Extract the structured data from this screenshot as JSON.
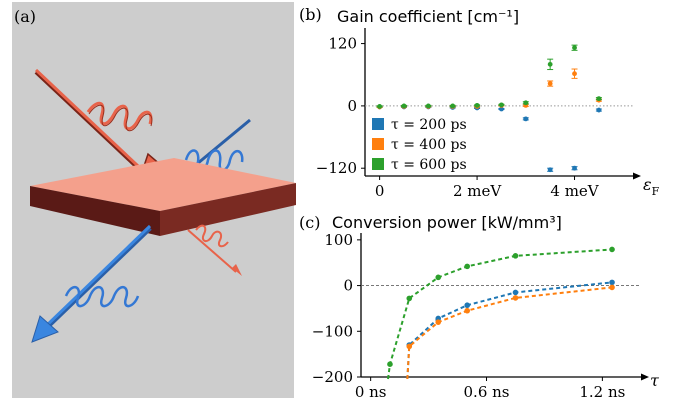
{
  "panel_a": {
    "label": "(a)",
    "background": "#cdcdcd",
    "slab_top": "#f4a08c",
    "slab_side": "#5a1a16",
    "red": "#e8634a",
    "blue": "#3478d4"
  },
  "chart_data": [
    {
      "type": "scatter",
      "panel_label": "(b)",
      "title": "Gain coefficient [cm⁻¹]",
      "xlabel": "ε",
      "xlabel_sub": "F",
      "ylabel": "",
      "xlim": [
        -0.3,
        5.2
      ],
      "ylim": [
        -135,
        150
      ],
      "xticks": [
        0,
        2,
        4
      ],
      "xtick_labels": [
        "0",
        "2 meV",
        "4 meV"
      ],
      "yticks": [
        -120,
        0,
        120
      ],
      "ytick_labels": [
        "−120",
        "0",
        "120"
      ],
      "zero_line": "dotted",
      "legend_placement": "bottom-left",
      "colors": [
        "#1f77b4",
        "#ff7f0e",
        "#2ca02c"
      ],
      "series": [
        {
          "name": "τ = 200 ps",
          "x": [
            0,
            0.5,
            1,
            1.5,
            2,
            2.5,
            3,
            3.5,
            4,
            4.5
          ],
          "y": [
            -2,
            -2,
            -2,
            -3,
            -4,
            -6,
            -25,
            -123,
            -120,
            -8
          ],
          "err": [
            1,
            1,
            1,
            1,
            1,
            1,
            2,
            3,
            3,
            2
          ]
        },
        {
          "name": "τ = 400 ps",
          "x": [
            0,
            0.5,
            1,
            1.5,
            2,
            2.5,
            3,
            3.5,
            4,
            4.5
          ],
          "y": [
            -2,
            -1,
            -1,
            -1,
            -1,
            1,
            1,
            43,
            62,
            11
          ],
          "err": [
            1,
            1,
            1,
            1,
            1,
            1,
            2,
            5,
            9,
            2
          ]
        },
        {
          "name": "τ = 600 ps",
          "x": [
            0,
            0.5,
            1,
            1.5,
            2,
            2.5,
            3,
            3.5,
            4,
            4.5
          ],
          "y": [
            -1,
            0,
            0,
            0,
            1,
            2,
            6,
            80,
            112,
            14
          ],
          "err": [
            1,
            1,
            1,
            1,
            1,
            1,
            2,
            10,
            5,
            2
          ]
        }
      ]
    },
    {
      "type": "line",
      "panel_label": "(c)",
      "title": "Conversion power [kW/mm³]",
      "xlabel": "τ",
      "ylabel": "",
      "xlim": [
        -0.05,
        1.4
      ],
      "ylim": [
        -200,
        115
      ],
      "xticks": [
        0,
        0.6,
        1.2
      ],
      "xtick_labels": [
        "0 ns",
        "0.6 ns",
        "1.2 ns"
      ],
      "yticks": [
        -200,
        -100,
        0,
        100
      ],
      "ytick_labels": [
        "−200",
        "−100",
        "0",
        "100"
      ],
      "zero_line": "dashed",
      "line_style": "dashed",
      "series": [
        {
          "name": "τ = 200 ps",
          "color": "#1f77b4",
          "x": [
            0.2,
            0.35,
            0.5,
            0.75,
            1.25
          ],
          "y": [
            -130,
            -72,
            -43,
            -15,
            7
          ]
        },
        {
          "name": "τ = 400 ps",
          "color": "#ff7f0e",
          "x": [
            0.2,
            0.35,
            0.5,
            0.75,
            1.25
          ],
          "y": [
            -133,
            -80,
            -55,
            -27,
            -4
          ]
        },
        {
          "name": "τ = 600 ps",
          "color": "#2ca02c",
          "x": [
            0.1,
            0.2,
            0.35,
            0.5,
            0.75,
            1.25
          ],
          "y": [
            -172,
            -28,
            18,
            42,
            65,
            79
          ]
        }
      ]
    }
  ]
}
